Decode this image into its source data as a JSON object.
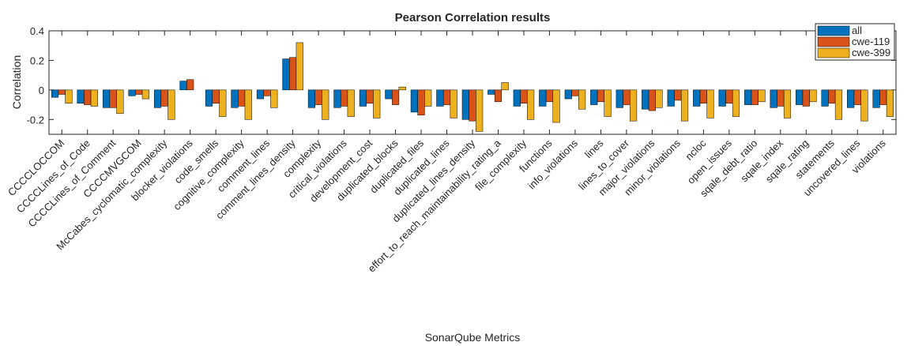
{
  "chart_data": {
    "type": "bar",
    "title": "Pearson Correlation results",
    "xlabel": "SonarQube Metrics",
    "ylabel": "Correlation",
    "categories": [
      "CCCCLOCCOM",
      "CCCCLines_of_Code",
      "CCCCLines_of_Comment",
      "CCCCMVGCOM",
      "McCabes_cyclomatic_complexity",
      "blocker_violations",
      "code_smells",
      "cognitive_complexity",
      "comment_lines",
      "comment_lines_density",
      "complexity",
      "critical_violations",
      "development_cost",
      "duplicated_blocks",
      "duplicated_files",
      "duplicated_lines",
      "duplicated_lines_density",
      "effort_to_reach_maintainability_rating_a",
      "file_complexity",
      "functions",
      "info_violations",
      "lines",
      "lines_to_cover",
      "major_violations",
      "minor_violations",
      "ncloc",
      "open_issues",
      "sqale_debt_ratio",
      "sqale_index",
      "sqale_rating",
      "statements",
      "uncovered_lines",
      "violations"
    ],
    "series": [
      {
        "name": "all",
        "color": "#0072BD",
        "values": [
          -0.05,
          -0.09,
          -0.12,
          -0.04,
          -0.12,
          0.06,
          -0.11,
          -0.12,
          -0.06,
          0.21,
          -0.12,
          -0.12,
          -0.11,
          -0.06,
          -0.15,
          -0.11,
          -0.2,
          -0.03,
          -0.11,
          -0.11,
          -0.06,
          -0.1,
          -0.12,
          -0.13,
          -0.11,
          -0.11,
          -0.11,
          -0.1,
          -0.12,
          -0.1,
          -0.11,
          -0.12,
          -0.12
        ]
      },
      {
        "name": "cwe-119",
        "color": "#D95319",
        "values": [
          -0.03,
          -0.1,
          -0.12,
          -0.03,
          -0.11,
          0.07,
          -0.09,
          -0.11,
          -0.04,
          0.22,
          -0.1,
          -0.11,
          -0.09,
          -0.1,
          -0.17,
          -0.1,
          -0.21,
          -0.08,
          -0.09,
          -0.08,
          -0.04,
          -0.08,
          -0.1,
          -0.14,
          -0.07,
          -0.09,
          -0.09,
          -0.1,
          -0.11,
          -0.11,
          -0.09,
          -0.1,
          -0.1
        ]
      },
      {
        "name": "cwe-399",
        "color": "#EDB120",
        "values": [
          -0.09,
          -0.11,
          -0.16,
          -0.06,
          -0.2,
          0,
          -0.18,
          -0.2,
          -0.12,
          0.32,
          -0.2,
          -0.18,
          -0.19,
          0.02,
          -0.11,
          -0.19,
          -0.28,
          0.05,
          -0.2,
          -0.22,
          -0.13,
          -0.18,
          -0.21,
          -0.12,
          -0.21,
          -0.19,
          -0.18,
          -0.08,
          -0.19,
          -0.08,
          -0.2,
          -0.21,
          -0.18
        ]
      }
    ],
    "ylim": [
      -0.3,
      0.4
    ],
    "yticks": [
      -0.2,
      0,
      0.2,
      0.4
    ],
    "legend": "northeast"
  }
}
